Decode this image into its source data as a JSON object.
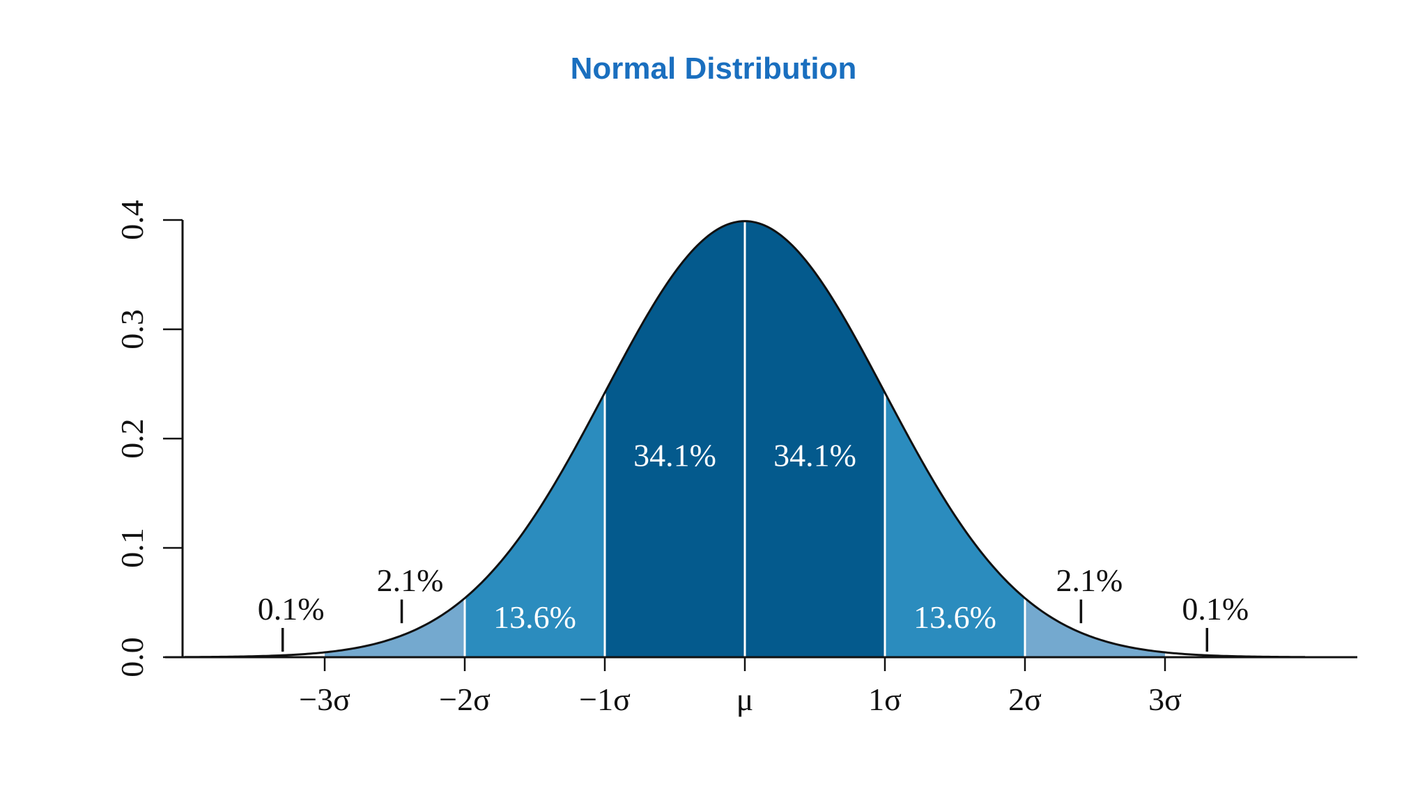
{
  "slide": {
    "title": "Normal Distribution",
    "title_color": "#1a6fbf"
  },
  "chart_data": {
    "type": "area",
    "title": "Normal Distribution",
    "xlabel": "",
    "ylabel": "",
    "xlim": [
      -4,
      4
    ],
    "ylim": [
      0,
      0.4
    ],
    "distribution": {
      "mean": 0,
      "sd": 1
    },
    "x_ticks": [
      {
        "value": -3,
        "label": "−3σ"
      },
      {
        "value": -2,
        "label": "−2σ"
      },
      {
        "value": -1,
        "label": "−1σ"
      },
      {
        "value": 0,
        "label": "μ"
      },
      {
        "value": 1,
        "label": "1σ"
      },
      {
        "value": 2,
        "label": "2σ"
      },
      {
        "value": 3,
        "label": "3σ"
      }
    ],
    "y_ticks": [
      {
        "value": 0.0,
        "label": "0.0"
      },
      {
        "value": 0.1,
        "label": "0.1"
      },
      {
        "value": 0.2,
        "label": "0.2"
      },
      {
        "value": 0.3,
        "label": "0.3"
      },
      {
        "value": 0.4,
        "label": "0.4"
      }
    ],
    "regions": [
      {
        "from": -3,
        "to": -2,
        "color": "#74a9cf"
      },
      {
        "from": -2,
        "to": -1,
        "color": "#2b8cbe"
      },
      {
        "from": -1,
        "to": 0,
        "color": "#045a8d"
      },
      {
        "from": 0,
        "to": 1,
        "color": "#045a8d"
      },
      {
        "from": 1,
        "to": 2,
        "color": "#2b8cbe"
      },
      {
        "from": 2,
        "to": 3,
        "color": "#74a9cf"
      }
    ],
    "inner_labels": [
      {
        "text": "13.6%",
        "x": -1.5,
        "y": 0.037
      },
      {
        "text": "34.1%",
        "x": -0.5,
        "y": 0.185
      },
      {
        "text": "34.1%",
        "x": 0.5,
        "y": 0.185
      },
      {
        "text": "13.6%",
        "x": 1.5,
        "y": 0.037
      }
    ],
    "callouts": [
      {
        "text": "0.1%",
        "x": -3.3,
        "y": 0.0
      },
      {
        "text": "2.1%",
        "x": -2.45,
        "y": 0.026
      },
      {
        "text": "2.1%",
        "x": 2.4,
        "y": 0.026
      },
      {
        "text": "0.1%",
        "x": 3.3,
        "y": 0.0
      }
    ],
    "curve_color": "#111111",
    "axis_color": "#111111"
  }
}
